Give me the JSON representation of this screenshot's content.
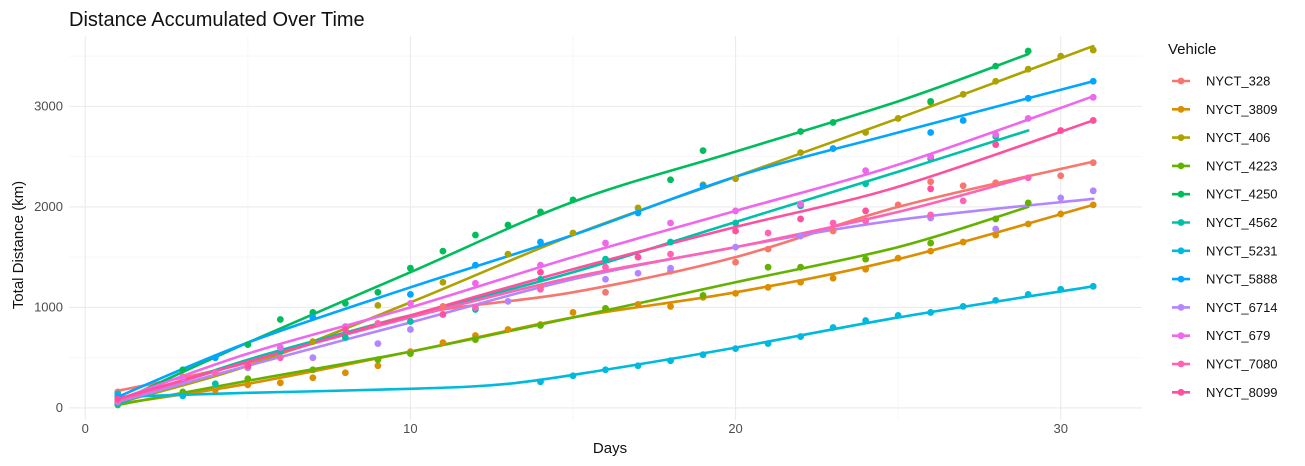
{
  "chart_data": {
    "type": "scatter",
    "title": "Distance Accumulated Over Time",
    "xlabel": "Days",
    "ylabel": "Total Distance (km)",
    "xlim": [
      -0.5,
      32.5
    ],
    "ylim": [
      -120,
      3700
    ],
    "x_ticks": [
      0,
      10,
      20,
      30
    ],
    "y_ticks": [
      0,
      1000,
      2000,
      3000
    ],
    "grid": true,
    "legend_title": "Vehicle",
    "legend_position": "right",
    "trend": "smoothed line per series",
    "series": [
      {
        "name": "NYCT_328",
        "color": "#F8766D",
        "points": [
          [
            1,
            160
          ],
          [
            3,
            310
          ],
          [
            6,
            560
          ],
          [
            9,
            840
          ],
          [
            11,
            1010
          ],
          [
            14,
            1200
          ],
          [
            16,
            1150
          ],
          [
            18,
            1360
          ],
          [
            20,
            1450
          ],
          [
            21,
            1580
          ],
          [
            23,
            1760
          ],
          [
            25,
            2020
          ],
          [
            26,
            2250
          ],
          [
            27,
            2210
          ],
          [
            28,
            2240
          ],
          [
            30,
            2310
          ],
          [
            31,
            2440
          ]
        ],
        "fit": [
          [
            1,
            170
          ],
          [
            5,
            450
          ],
          [
            10,
            920
          ],
          [
            15,
            1150
          ],
          [
            20,
            1500
          ],
          [
            25,
            2000
          ],
          [
            31,
            2450
          ]
        ]
      },
      {
        "name": "NYCT_3809",
        "color": "#DB8E00",
        "points": [
          [
            1,
            40
          ],
          [
            4,
            180
          ],
          [
            5,
            230
          ],
          [
            6,
            250
          ],
          [
            7,
            300
          ],
          [
            8,
            350
          ],
          [
            9,
            420
          ],
          [
            10,
            560
          ],
          [
            11,
            650
          ],
          [
            12,
            720
          ],
          [
            13,
            780
          ],
          [
            14,
            830
          ],
          [
            15,
            950
          ],
          [
            16,
            990
          ],
          [
            17,
            1030
          ],
          [
            18,
            1010
          ],
          [
            19,
            1100
          ],
          [
            20,
            1140
          ],
          [
            21,
            1200
          ],
          [
            22,
            1250
          ],
          [
            23,
            1290
          ],
          [
            24,
            1380
          ],
          [
            25,
            1490
          ],
          [
            26,
            1560
          ],
          [
            27,
            1650
          ],
          [
            28,
            1720
          ],
          [
            29,
            1830
          ],
          [
            30,
            1930
          ],
          [
            31,
            2020
          ]
        ],
        "fit": [
          [
            1,
            40
          ],
          [
            5,
            240
          ],
          [
            10,
            560
          ],
          [
            15,
            900
          ],
          [
            20,
            1150
          ],
          [
            25,
            1480
          ],
          [
            31,
            2020
          ]
        ]
      },
      {
        "name": "NYCT_406",
        "color": "#AEA200",
        "points": [
          [
            1,
            50
          ],
          [
            5,
            400
          ],
          [
            7,
            660
          ],
          [
            9,
            1020
          ],
          [
            11,
            1250
          ],
          [
            13,
            1530
          ],
          [
            15,
            1740
          ],
          [
            17,
            1990
          ],
          [
            19,
            2220
          ],
          [
            20,
            2280
          ],
          [
            22,
            2540
          ],
          [
            24,
            2740
          ],
          [
            25,
            2880
          ],
          [
            26,
            3040
          ],
          [
            27,
            3120
          ],
          [
            28,
            3250
          ],
          [
            29,
            3370
          ],
          [
            30,
            3500
          ],
          [
            31,
            3560
          ]
        ],
        "fit": [
          [
            1,
            50
          ],
          [
            5,
            420
          ],
          [
            10,
            1050
          ],
          [
            15,
            1720
          ],
          [
            20,
            2300
          ],
          [
            25,
            2880
          ],
          [
            31,
            3600
          ]
        ]
      },
      {
        "name": "NYCT_4223",
        "color": "#64B200",
        "points": [
          [
            1,
            30
          ],
          [
            3,
            160
          ],
          [
            5,
            290
          ],
          [
            7,
            380
          ],
          [
            9,
            480
          ],
          [
            10,
            540
          ],
          [
            12,
            680
          ],
          [
            14,
            820
          ],
          [
            16,
            990
          ],
          [
            19,
            1120
          ],
          [
            21,
            1400
          ],
          [
            22,
            1400
          ],
          [
            24,
            1480
          ],
          [
            26,
            1640
          ],
          [
            28,
            1880
          ],
          [
            29,
            2040
          ]
        ],
        "fit": [
          [
            1,
            30
          ],
          [
            5,
            270
          ],
          [
            10,
            560
          ],
          [
            15,
            900
          ],
          [
            20,
            1250
          ],
          [
            25,
            1600
          ],
          [
            29,
            2000
          ]
        ]
      },
      {
        "name": "NYCT_4250",
        "color": "#00BD5C",
        "points": [
          [
            1,
            60
          ],
          [
            3,
            380
          ],
          [
            5,
            630
          ],
          [
            6,
            880
          ],
          [
            7,
            950
          ],
          [
            8,
            1040
          ],
          [
            9,
            1150
          ],
          [
            10,
            1390
          ],
          [
            11,
            1560
          ],
          [
            12,
            1720
          ],
          [
            13,
            1820
          ],
          [
            14,
            1950
          ],
          [
            15,
            2070
          ],
          [
            18,
            2270
          ],
          [
            19,
            2560
          ],
          [
            22,
            2750
          ],
          [
            23,
            2840
          ],
          [
            26,
            3050
          ],
          [
            28,
            3400
          ],
          [
            29,
            3550
          ]
        ],
        "fit": [
          [
            1,
            60
          ],
          [
            5,
            650
          ],
          [
            10,
            1350
          ],
          [
            15,
            2050
          ],
          [
            20,
            2550
          ],
          [
            25,
            3050
          ],
          [
            29,
            3520
          ]
        ]
      },
      {
        "name": "NYCT_4562",
        "color": "#00C1A7",
        "points": [
          [
            1,
            40
          ],
          [
            4,
            240
          ],
          [
            6,
            560
          ],
          [
            8,
            700
          ],
          [
            10,
            860
          ],
          [
            12,
            980
          ],
          [
            14,
            1280
          ],
          [
            16,
            1480
          ],
          [
            18,
            1650
          ],
          [
            20,
            1840
          ],
          [
            22,
            2010
          ],
          [
            24,
            2230
          ],
          [
            26,
            2480
          ],
          [
            28,
            2700
          ]
        ],
        "fit": [
          [
            1,
            40
          ],
          [
            5,
            480
          ],
          [
            10,
            920
          ],
          [
            15,
            1350
          ],
          [
            20,
            1850
          ],
          [
            25,
            2350
          ],
          [
            29,
            2760
          ]
        ]
      },
      {
        "name": "NYCT_5231",
        "color": "#00BADE",
        "points": [
          [
            1,
            140
          ],
          [
            3,
            120
          ],
          [
            14,
            260
          ],
          [
            15,
            320
          ],
          [
            16,
            380
          ],
          [
            17,
            420
          ],
          [
            18,
            470
          ],
          [
            19,
            530
          ],
          [
            20,
            590
          ],
          [
            21,
            640
          ],
          [
            22,
            710
          ],
          [
            23,
            800
          ],
          [
            24,
            870
          ],
          [
            25,
            920
          ],
          [
            26,
            950
          ],
          [
            27,
            1010
          ],
          [
            28,
            1070
          ],
          [
            29,
            1130
          ],
          [
            30,
            1180
          ],
          [
            31,
            1210
          ]
        ],
        "fit": [
          [
            1,
            110
          ],
          [
            5,
            150
          ],
          [
            10,
            190
          ],
          [
            13,
            240
          ],
          [
            16,
            380
          ],
          [
            20,
            600
          ],
          [
            25,
            900
          ],
          [
            31,
            1210
          ]
        ]
      },
      {
        "name": "NYCT_5888",
        "color": "#00A6FF",
        "points": [
          [
            1,
            110
          ],
          [
            4,
            500
          ],
          [
            7,
            900
          ],
          [
            10,
            1130
          ],
          [
            12,
            1420
          ],
          [
            14,
            1650
          ],
          [
            17,
            1940
          ],
          [
            19,
            2210
          ],
          [
            23,
            2580
          ],
          [
            26,
            2740
          ],
          [
            27,
            2860
          ],
          [
            29,
            3080
          ],
          [
            31,
            3250
          ]
        ],
        "fit": [
          [
            1,
            110
          ],
          [
            5,
            650
          ],
          [
            10,
            1200
          ],
          [
            15,
            1720
          ],
          [
            20,
            2300
          ],
          [
            25,
            2740
          ],
          [
            31,
            3250
          ]
        ]
      },
      {
        "name": "NYCT_6714",
        "color": "#B385FF",
        "points": [
          [
            1,
            60
          ],
          [
            5,
            400
          ],
          [
            7,
            500
          ],
          [
            9,
            640
          ],
          [
            10,
            780
          ],
          [
            13,
            1060
          ],
          [
            16,
            1280
          ],
          [
            17,
            1340
          ],
          [
            18,
            1390
          ],
          [
            20,
            1600
          ],
          [
            22,
            1710
          ],
          [
            26,
            1890
          ],
          [
            28,
            1780
          ],
          [
            30,
            2090
          ],
          [
            31,
            2160
          ]
        ],
        "fit": [
          [
            1,
            60
          ],
          [
            5,
            420
          ],
          [
            10,
            850
          ],
          [
            15,
            1280
          ],
          [
            20,
            1600
          ],
          [
            25,
            1870
          ],
          [
            31,
            2080
          ]
        ]
      },
      {
        "name": "NYCT_679",
        "color": "#EF67EB",
        "points": [
          [
            1,
            80
          ],
          [
            3,
            300
          ],
          [
            6,
            600
          ],
          [
            8,
            810
          ],
          [
            10,
            1040
          ],
          [
            12,
            1240
          ],
          [
            14,
            1420
          ],
          [
            16,
            1640
          ],
          [
            18,
            1840
          ],
          [
            20,
            1960
          ],
          [
            22,
            2030
          ],
          [
            24,
            2360
          ],
          [
            26,
            2500
          ],
          [
            28,
            2720
          ],
          [
            29,
            2880
          ],
          [
            31,
            3090
          ]
        ],
        "fit": [
          [
            1,
            80
          ],
          [
            5,
            540
          ],
          [
            10,
            1000
          ],
          [
            15,
            1500
          ],
          [
            20,
            1960
          ],
          [
            25,
            2420
          ],
          [
            31,
            3100
          ]
        ]
      },
      {
        "name": "NYCT_7080",
        "color": "#FF63B6",
        "points": [
          [
            1,
            70
          ],
          [
            4,
            350
          ],
          [
            6,
            500
          ],
          [
            9,
            840
          ],
          [
            12,
            1000
          ],
          [
            14,
            1180
          ],
          [
            16,
            1400
          ],
          [
            18,
            1530
          ],
          [
            21,
            1740
          ],
          [
            23,
            1840
          ],
          [
            24,
            1860
          ],
          [
            26,
            1920
          ],
          [
            27,
            2060
          ],
          [
            29,
            2290
          ]
        ],
        "fit": [
          [
            1,
            70
          ],
          [
            5,
            460
          ],
          [
            10,
            900
          ],
          [
            15,
            1300
          ],
          [
            20,
            1600
          ],
          [
            25,
            1950
          ],
          [
            29,
            2300
          ]
        ]
      },
      {
        "name": "NYCT_8099",
        "color": "#FF4F9E",
        "points": [
          [
            1,
            90
          ],
          [
            5,
            420
          ],
          [
            8,
            780
          ],
          [
            11,
            930
          ],
          [
            14,
            1350
          ],
          [
            17,
            1500
          ],
          [
            20,
            1760
          ],
          [
            22,
            1880
          ],
          [
            24,
            1960
          ],
          [
            26,
            2180
          ],
          [
            28,
            2620
          ],
          [
            30,
            2760
          ],
          [
            31,
            2860
          ]
        ],
        "fit": [
          [
            1,
            90
          ],
          [
            5,
            460
          ],
          [
            10,
            920
          ],
          [
            15,
            1380
          ],
          [
            20,
            1800
          ],
          [
            25,
            2200
          ],
          [
            31,
            2860
          ]
        ]
      }
    ]
  }
}
